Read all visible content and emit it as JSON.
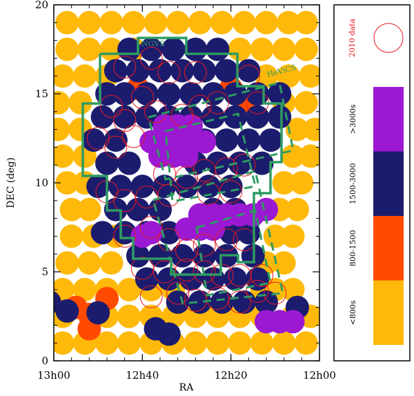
{
  "chart_data": {
    "type": "scatter",
    "title": "",
    "xlabel": "RA",
    "ylabel": "DEC (deg)",
    "x_axis": {
      "direction": "decreasing-left-to-right",
      "range_minutes_from_12h": [
        60,
        0
      ],
      "tick_labels": [
        "13h00",
        "12h40",
        "12h20",
        "12h00"
      ],
      "tick_values_minutes_from_12h": [
        60,
        40,
        20,
        0
      ]
    },
    "y_axis": {
      "range": [
        0,
        20
      ],
      "tick_labels": [
        "0",
        "5",
        "10",
        "15",
        "20"
      ],
      "tick_values": [
        0,
        5,
        10,
        15,
        20
      ]
    },
    "legend": {
      "position": "right-panel",
      "title_2010": "2010 data",
      "entries": [
        {
          "label": ">3000s",
          "color": "#9b19d2"
        },
        {
          "label": "1500-3000",
          "color": "#1c1c6e"
        },
        {
          "label": "800-1500",
          "color": "#ff4a00"
        },
        {
          "label": "<800s",
          "color": "#ffb90a"
        }
      ]
    },
    "annotations": [
      {
        "text": "NGVS",
        "color": "#2e9b62"
      },
      {
        "text": "HeViCS",
        "color": "#2e9b62"
      }
    ],
    "colors": {
      "deep": "#9b19d2",
      "medium": "#1c1c6e",
      "shallow": "#ff4a00",
      "very_shallow": "#ffb90a",
      "ring_2010": "#e8191f",
      "outline": "#2e9b62"
    },
    "series": [
      {
        "name": "<800s",
        "color": "#ffb90a",
        "points": [
          [
            57,
            19
          ],
          [
            52,
            19
          ],
          [
            47,
            19
          ],
          [
            42,
            19
          ],
          [
            37,
            19
          ],
          [
            32,
            19
          ],
          [
            27,
            19
          ],
          [
            22,
            19
          ],
          [
            17,
            19
          ],
          [
            12,
            19
          ],
          [
            7,
            19
          ],
          [
            3,
            19
          ],
          [
            57,
            17.5
          ],
          [
            52,
            17.5
          ],
          [
            47,
            17.5
          ],
          [
            42,
            17.5
          ],
          [
            18,
            17.5
          ],
          [
            13,
            17.5
          ],
          [
            8,
            17.5
          ],
          [
            3,
            17.5
          ],
          [
            58,
            16
          ],
          [
            53,
            16
          ],
          [
            48,
            16
          ],
          [
            12,
            16
          ],
          [
            7,
            16
          ],
          [
            2,
            16
          ],
          [
            59,
            14.5
          ],
          [
            54,
            14.5
          ],
          [
            8,
            14.5
          ],
          [
            3,
            14.5
          ],
          [
            59,
            13
          ],
          [
            54,
            13
          ],
          [
            5,
            13
          ],
          [
            1,
            13
          ],
          [
            58,
            11.5
          ],
          [
            53,
            11.5
          ],
          [
            6,
            11.5
          ],
          [
            2,
            11.5
          ],
          [
            57,
            10
          ],
          [
            53,
            10
          ],
          [
            8,
            10
          ],
          [
            4,
            10
          ],
          [
            56,
            8.5
          ],
          [
            52,
            8.5
          ],
          [
            9,
            8.5
          ],
          [
            5,
            8.5
          ],
          [
            56,
            7
          ],
          [
            51,
            7
          ],
          [
            46,
            7
          ],
          [
            10,
            7
          ],
          [
            6,
            7
          ],
          [
            57,
            5.5
          ],
          [
            52,
            5.5
          ],
          [
            47,
            5.5
          ],
          [
            12,
            5.5
          ],
          [
            8,
            5.5
          ],
          [
            58,
            4
          ],
          [
            53,
            4
          ],
          [
            48,
            4
          ],
          [
            43,
            4
          ],
          [
            38,
            4
          ],
          [
            33,
            4
          ],
          [
            13,
            4
          ],
          [
            10,
            4
          ],
          [
            6,
            4
          ],
          [
            58,
            2.5
          ],
          [
            48,
            2.5
          ],
          [
            43,
            2.5
          ],
          [
            38,
            2.5
          ],
          [
            33,
            2.5
          ],
          [
            28,
            2.5
          ],
          [
            23,
            2.5
          ],
          [
            18,
            2.5
          ],
          [
            13,
            2.5
          ],
          [
            6,
            2.5
          ],
          [
            2,
            2.5
          ],
          [
            58,
            1
          ],
          [
            53,
            1
          ],
          [
            48,
            1
          ],
          [
            43,
            1
          ],
          [
            38,
            1
          ],
          [
            33,
            1
          ],
          [
            28,
            1
          ],
          [
            23,
            1
          ],
          [
            18,
            1
          ],
          [
            13,
            1
          ],
          [
            8,
            1
          ],
          [
            3,
            1
          ]
        ]
      },
      {
        "name": "800-1500",
        "color": "#ff4a00",
        "points": [
          [
            41,
            15.3
          ],
          [
            16,
            14.5
          ],
          [
            20,
            15.3
          ],
          [
            23,
            8
          ],
          [
            55,
            3
          ],
          [
            52,
            2.6
          ],
          [
            48,
            3.5
          ],
          [
            52,
            1.8
          ]
        ]
      },
      {
        "name": "1500-3000",
        "color": "#1c1c6e",
        "points": [
          [
            43,
            17.5
          ],
          [
            38,
            17.5
          ],
          [
            33,
            17.5
          ],
          [
            28,
            17.5
          ],
          [
            23,
            17.5
          ],
          [
            46,
            16.3
          ],
          [
            41,
            16.3
          ],
          [
            36,
            16.3
          ],
          [
            31,
            16.3
          ],
          [
            26,
            16.3
          ],
          [
            21,
            16.3
          ],
          [
            16,
            16.3
          ],
          [
            48,
            15
          ],
          [
            44,
            15
          ],
          [
            39,
            15
          ],
          [
            34,
            15
          ],
          [
            29,
            15
          ],
          [
            24,
            15
          ],
          [
            19,
            15
          ],
          [
            14,
            15
          ],
          [
            9,
            15
          ],
          [
            49,
            13.7
          ],
          [
            44,
            13.7
          ],
          [
            39,
            13.7
          ],
          [
            34,
            13.7
          ],
          [
            29,
            13.7
          ],
          [
            24,
            13.7
          ],
          [
            19,
            13.7
          ],
          [
            14,
            13.7
          ],
          [
            9,
            13.7
          ],
          [
            51,
            12.4
          ],
          [
            46,
            12.4
          ],
          [
            26,
            12.4
          ],
          [
            21,
            12.4
          ],
          [
            16,
            12.4
          ],
          [
            11,
            12.4
          ],
          [
            48,
            11.1
          ],
          [
            43,
            11.1
          ],
          [
            28,
            11.1
          ],
          [
            23,
            11.1
          ],
          [
            18,
            11.1
          ],
          [
            13,
            11.1
          ],
          [
            50,
            9.8
          ],
          [
            45,
            9.8
          ],
          [
            40,
            9.8
          ],
          [
            35,
            9.8
          ],
          [
            30,
            9.8
          ],
          [
            25,
            9.8
          ],
          [
            20,
            9.8
          ],
          [
            46,
            8.5
          ],
          [
            41,
            8.5
          ],
          [
            36,
            8.5
          ],
          [
            24,
            8.5
          ],
          [
            19,
            8.5
          ],
          [
            49,
            7.2
          ],
          [
            44,
            7.2
          ],
          [
            39,
            7.2
          ],
          [
            34,
            7.2
          ],
          [
            20,
            7.2
          ],
          [
            16,
            7.2
          ],
          [
            41,
            5.9
          ],
          [
            36,
            5.9
          ],
          [
            31,
            5.9
          ],
          [
            26,
            5.9
          ],
          [
            21,
            5.9
          ],
          [
            15,
            5.9
          ],
          [
            39,
            4.6
          ],
          [
            34,
            4.6
          ],
          [
            29,
            4.6
          ],
          [
            24,
            4.6
          ],
          [
            19,
            4.6
          ],
          [
            14,
            4.6
          ],
          [
            32,
            3.3
          ],
          [
            27,
            3.3
          ],
          [
            22,
            3.3
          ],
          [
            17,
            3.3
          ],
          [
            12,
            3.3
          ],
          [
            61,
            3.3
          ],
          [
            57,
            2.8
          ],
          [
            50,
            2.7
          ],
          [
            37,
            1.8
          ],
          [
            34,
            1.5
          ],
          [
            5,
            3
          ]
        ]
      },
      {
        "name": ">3000s",
        "color": "#9b19d2",
        "points": [
          [
            35,
            13.2
          ],
          [
            32,
            13.2
          ],
          [
            29,
            13.2
          ],
          [
            38,
            12.3
          ],
          [
            35,
            12.3
          ],
          [
            32,
            12.3
          ],
          [
            29,
            12.3
          ],
          [
            26,
            12.3
          ],
          [
            36,
            11.5
          ],
          [
            33,
            11.5
          ],
          [
            30,
            11.5
          ],
          [
            27,
            8.2
          ],
          [
            24,
            8.2
          ],
          [
            21,
            8.2
          ],
          [
            18,
            8.2
          ],
          [
            15,
            8.2
          ],
          [
            30,
            7.4
          ],
          [
            27,
            7.4
          ],
          [
            24,
            7.4
          ],
          [
            38,
            7.2
          ],
          [
            40,
            7
          ],
          [
            12,
            8.5
          ],
          [
            12,
            2.2
          ],
          [
            9,
            2.2
          ],
          [
            6,
            2.2
          ]
        ]
      },
      {
        "name": "2010 data",
        "color": "#e8191f",
        "points": [
          [
            44,
            16.5
          ],
          [
            38,
            17
          ],
          [
            34,
            16.2
          ],
          [
            28,
            16.2
          ],
          [
            16,
            16
          ],
          [
            14,
            14.5
          ],
          [
            47,
            14.3
          ],
          [
            44,
            13.5
          ],
          [
            40,
            14.8
          ],
          [
            37,
            14
          ],
          [
            31,
            13.8
          ],
          [
            27,
            14.3
          ],
          [
            23,
            14.5
          ],
          [
            50,
            12.5
          ],
          [
            46,
            12
          ],
          [
            42,
            12.6
          ],
          [
            35,
            10.5
          ],
          [
            30,
            10.3
          ],
          [
            26,
            10.7
          ],
          [
            21,
            10.8
          ],
          [
            17,
            11
          ],
          [
            48,
            9.5
          ],
          [
            44,
            9
          ],
          [
            39,
            9.2
          ],
          [
            34,
            9.3
          ],
          [
            25,
            9.4
          ],
          [
            20,
            9.5
          ],
          [
            44,
            7
          ],
          [
            38,
            7.5
          ],
          [
            34,
            6.8
          ],
          [
            30,
            6.2
          ],
          [
            26,
            6.5
          ],
          [
            21,
            6.8
          ],
          [
            17,
            6.8
          ],
          [
            40,
            5.2
          ],
          [
            35,
            5
          ],
          [
            30,
            5.1
          ],
          [
            26,
            5
          ],
          [
            22,
            4.8
          ],
          [
            18,
            4.8
          ],
          [
            13,
            4.8
          ],
          [
            14,
            3.9
          ],
          [
            10,
            3.8
          ],
          [
            38,
            3.6
          ],
          [
            32,
            3.8
          ],
          [
            28,
            3.4
          ],
          [
            23,
            3.5
          ],
          [
            18,
            3.3
          ]
        ]
      }
    ]
  }
}
